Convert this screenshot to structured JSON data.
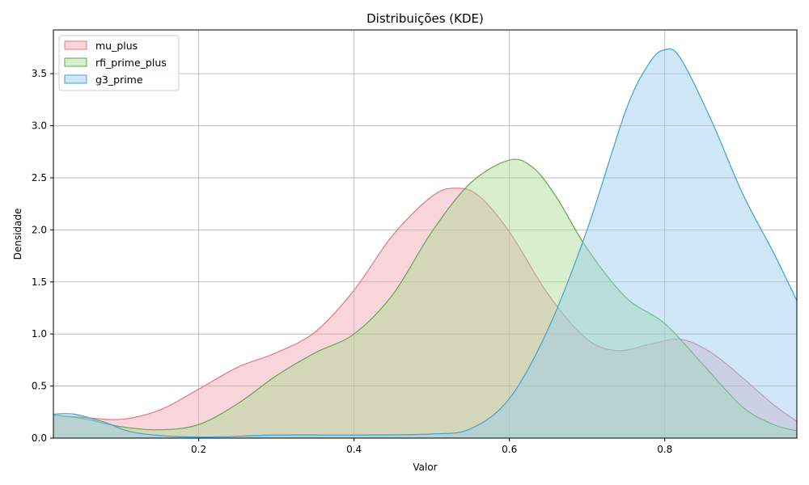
{
  "chart_data": {
    "type": "area",
    "title": "Distribuições (KDE)",
    "xlabel": "Valor",
    "ylabel": "Densidade",
    "xlim": [
      0.013,
      0.97
    ],
    "ylim": [
      0,
      3.92
    ],
    "xticks": [
      "0.2",
      "0.4",
      "0.6",
      "0.8"
    ],
    "xtick_values": [
      0.2,
      0.4,
      0.6,
      0.8
    ],
    "yticks": [
      "0.0",
      "0.5",
      "1.0",
      "1.5",
      "2.0",
      "2.5",
      "3.0",
      "3.5"
    ],
    "ytick_values": [
      0.0,
      0.5,
      1.0,
      1.5,
      2.0,
      2.5,
      3.0,
      3.5
    ],
    "grid": true,
    "legend_position": "top-left",
    "series": [
      {
        "name": "mu_plus",
        "line_color": "#e8747e",
        "fill_color": "#f4a3b1",
        "x": [
          0.013,
          0.05,
          0.1,
          0.15,
          0.2,
          0.25,
          0.3,
          0.35,
          0.4,
          0.45,
          0.5,
          0.53,
          0.56,
          0.6,
          0.65,
          0.7,
          0.74,
          0.78,
          0.82,
          0.86,
          0.9,
          0.94,
          0.97
        ],
        "values": [
          0.22,
          0.2,
          0.18,
          0.27,
          0.47,
          0.68,
          0.82,
          1.02,
          1.42,
          1.95,
          2.32,
          2.4,
          2.33,
          1.98,
          1.38,
          0.95,
          0.84,
          0.9,
          0.95,
          0.82,
          0.58,
          0.32,
          0.16
        ]
      },
      {
        "name": "rfi_prime_plus",
        "line_color": "#5aad43",
        "fill_color": "#a8d993",
        "x": [
          0.013,
          0.05,
          0.1,
          0.15,
          0.2,
          0.25,
          0.3,
          0.35,
          0.4,
          0.45,
          0.5,
          0.55,
          0.6,
          0.63,
          0.66,
          0.7,
          0.75,
          0.8,
          0.85,
          0.9,
          0.94,
          0.97
        ],
        "values": [
          0.22,
          0.19,
          0.11,
          0.08,
          0.13,
          0.33,
          0.6,
          0.82,
          1.0,
          1.38,
          1.98,
          2.45,
          2.67,
          2.6,
          2.32,
          1.82,
          1.35,
          1.1,
          0.7,
          0.3,
          0.13,
          0.07
        ]
      },
      {
        "name": "g3_prime",
        "line_color": "#3ba3d8",
        "fill_color": "#95c9ee",
        "x": [
          0.013,
          0.04,
          0.08,
          0.12,
          0.2,
          0.3,
          0.4,
          0.5,
          0.55,
          0.6,
          0.65,
          0.7,
          0.75,
          0.78,
          0.8,
          0.82,
          0.86,
          0.9,
          0.94,
          0.97
        ],
        "values": [
          0.23,
          0.23,
          0.15,
          0.05,
          0.01,
          0.03,
          0.03,
          0.04,
          0.09,
          0.38,
          1.05,
          2.0,
          3.15,
          3.6,
          3.73,
          3.65,
          3.05,
          2.35,
          1.78,
          1.32
        ]
      }
    ]
  }
}
